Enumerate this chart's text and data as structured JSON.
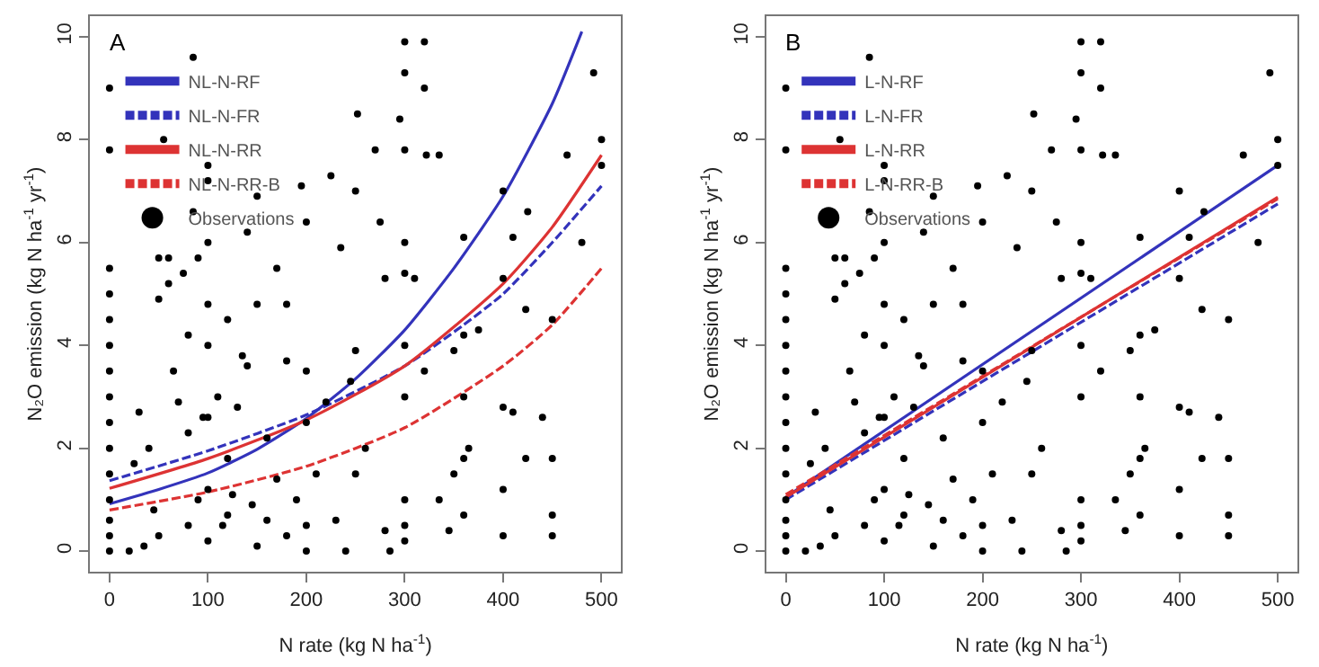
{
  "chart_data": [
    {
      "type": "line",
      "annotations": [
        "A"
      ],
      "xlabel": "N rate (kg N ha$^{-1}$)",
      "ylabel": "N₂O emission (kg N ha$^{-1}$ yr$^{-1}$)",
      "xlim": [
        -20,
        520
      ],
      "ylim": [
        -0.4,
        10.4
      ],
      "xticks": [
        0,
        100,
        200,
        300,
        400,
        500
      ],
      "yticks": [
        0,
        2,
        4,
        6,
        8,
        10
      ],
      "legend": "top left",
      "marker": "none",
      "series": [
        {
          "name": "NL-N-RF",
          "color": "#3333bb",
          "line_style": "solid",
          "x": [
            0,
            50,
            100,
            150,
            200,
            250,
            300,
            350,
            400,
            450,
            480
          ],
          "values": [
            0.92,
            1.2,
            1.52,
            1.98,
            2.58,
            3.35,
            4.3,
            5.5,
            6.9,
            8.7,
            10.1
          ]
        },
        {
          "name": "NL-N-FR",
          "color": "#3333bb",
          "line_style": "dashed",
          "x": [
            0,
            100,
            200,
            300,
            360,
            400,
            450,
            500
          ],
          "values": [
            1.37,
            1.95,
            2.65,
            3.6,
            4.4,
            5.0,
            6.0,
            7.1
          ]
        },
        {
          "name": "NL-N-RR",
          "color": "#dd3333",
          "line_style": "solid",
          "x": [
            0,
            100,
            200,
            300,
            400,
            450,
            500
          ],
          "values": [
            1.22,
            1.8,
            2.55,
            3.6,
            5.2,
            6.3,
            7.7
          ]
        },
        {
          "name": "NL-N-RR-B",
          "color": "#dd3333",
          "line_style": "dashed",
          "x": [
            0,
            100,
            200,
            300,
            400,
            450,
            500
          ],
          "values": [
            0.8,
            1.15,
            1.65,
            2.4,
            3.6,
            4.4,
            5.5
          ]
        },
        {
          "name": "Observations",
          "type": "scatter",
          "color": "#000000",
          "marker": "circle",
          "x": [
            0,
            0,
            0,
            0,
            0,
            0,
            0,
            0,
            0,
            0,
            0,
            0,
            0,
            0,
            0,
            20,
            25,
            30,
            35,
            40,
            45,
            50,
            50,
            50,
            55,
            60,
            60,
            65,
            70,
            75,
            80,
            80,
            80,
            85,
            85,
            90,
            90,
            95,
            100,
            100,
            100,
            100,
            100,
            100,
            100,
            100,
            110,
            115,
            120,
            120,
            120,
            125,
            130,
            135,
            140,
            140,
            145,
            150,
            150,
            150,
            160,
            160,
            170,
            170,
            180,
            180,
            180,
            190,
            195,
            200,
            200,
            200,
            200,
            200,
            210,
            220,
            225,
            230,
            235,
            240,
            245,
            250,
            250,
            250,
            252,
            260,
            270,
            275,
            280,
            280,
            285,
            295,
            300,
            300,
            300,
            300,
            300,
            300,
            300,
            300,
            300,
            300,
            310,
            320,
            320,
            320,
            322,
            335,
            335,
            345,
            350,
            350,
            360,
            360,
            360,
            360,
            360,
            365,
            375,
            400,
            400,
            400,
            400,
            400,
            410,
            410,
            423,
            425,
            423,
            440,
            450,
            450,
            450,
            450,
            465,
            480,
            492,
            500,
            500
          ],
          "values": [
            0,
            0.3,
            0.6,
            1,
            1.5,
            2,
            2.5,
            3,
            3.5,
            4,
            4.5,
            5,
            5.5,
            7.8,
            9.0,
            0,
            1.7,
            2.7,
            0.1,
            2.0,
            0.8,
            5.7,
            4.9,
            0.3,
            8.0,
            5.7,
            5.2,
            3.5,
            2.9,
            5.4,
            0.5,
            2.3,
            4.2,
            6.6,
            9.6,
            1.0,
            5.7,
            2.6,
            0.2,
            1.2,
            2.6,
            4.0,
            4.8,
            6.0,
            7.2,
            7.5,
            3.0,
            0.5,
            0.7,
            1.8,
            4.5,
            1.1,
            2.8,
            3.8,
            6.2,
            3.6,
            0.9,
            4.8,
            6.9,
            0.1,
            0.6,
            2.2,
            5.5,
            1.4,
            3.7,
            4.8,
            0.3,
            1.0,
            7.1,
            6.4,
            3.5,
            2.5,
            0.5,
            0.0,
            1.5,
            2.9,
            7.3,
            0.6,
            5.9,
            0.0,
            3.3,
            3.9,
            7.0,
            1.5,
            8.5,
            2.0,
            7.8,
            6.4,
            5.3,
            0.4,
            0.0,
            8.4,
            9.9,
            9.3,
            7.8,
            6.0,
            5.4,
            4.0,
            3.0,
            1.0,
            0.5,
            0.2,
            5.3,
            9.9,
            9.0,
            3.5,
            7.7,
            7.7,
            1.0,
            0.4,
            3.9,
            1.5,
            6.1,
            4.2,
            3.0,
            1.8,
            0.7,
            2.0,
            4.3,
            7.0,
            5.3,
            2.8,
            1.2,
            0.3,
            6.1,
            2.7,
            4.7,
            6.6,
            1.8,
            2.6,
            4.5,
            1.8,
            0.7,
            0.3,
            7.7,
            6.0,
            9.3,
            8.0,
            7.5
          ]
        }
      ]
    },
    {
      "type": "line",
      "annotations": [
        "B"
      ],
      "xlabel": "N rate (kg N ha$^{-1}$)",
      "ylabel": "N₂O emission (kg N ha$^{-1}$ yr$^{-1}$)",
      "xlim": [
        -20,
        520
      ],
      "ylim": [
        -0.4,
        10.4
      ],
      "xticks": [
        0,
        100,
        200,
        300,
        400,
        500
      ],
      "yticks": [
        0,
        2,
        4,
        6,
        8,
        10
      ],
      "legend": "top left",
      "marker": "none",
      "series": [
        {
          "name": "L-N-RF",
          "color": "#3333bb",
          "line_style": "solid",
          "x": [
            0,
            500
          ],
          "values": [
            1.05,
            7.5
          ]
        },
        {
          "name": "L-N-FR",
          "color": "#3333bb",
          "line_style": "dashed",
          "x": [
            0,
            500
          ],
          "values": [
            1.0,
            6.75
          ]
        },
        {
          "name": "L-N-RR",
          "color": "#dd3333",
          "line_style": "solid",
          "x": [
            0,
            500
          ],
          "values": [
            1.05,
            6.88
          ]
        },
        {
          "name": "L-N-RR-B",
          "color": "#dd3333",
          "line_style": "dashed",
          "x": [
            0,
            500
          ],
          "values": [
            1.1,
            6.85
          ]
        },
        {
          "name": "Observations",
          "type": "scatter",
          "color": "#000000",
          "marker": "circle",
          "x": [
            0,
            0,
            0,
            0,
            0,
            0,
            0,
            0,
            0,
            0,
            0,
            0,
            0,
            0,
            0,
            20,
            25,
            30,
            35,
            40,
            45,
            50,
            50,
            50,
            55,
            60,
            60,
            65,
            70,
            75,
            80,
            80,
            80,
            85,
            85,
            90,
            90,
            95,
            100,
            100,
            100,
            100,
            100,
            100,
            100,
            100,
            110,
            115,
            120,
            120,
            120,
            125,
            130,
            135,
            140,
            140,
            145,
            150,
            150,
            150,
            160,
            160,
            170,
            170,
            180,
            180,
            180,
            190,
            195,
            200,
            200,
            200,
            200,
            200,
            210,
            220,
            225,
            230,
            235,
            240,
            245,
            250,
            250,
            250,
            252,
            260,
            270,
            275,
            280,
            280,
            285,
            295,
            300,
            300,
            300,
            300,
            300,
            300,
            300,
            300,
            300,
            300,
            310,
            320,
            320,
            320,
            322,
            335,
            335,
            345,
            350,
            350,
            360,
            360,
            360,
            360,
            360,
            365,
            375,
            400,
            400,
            400,
            400,
            400,
            410,
            410,
            423,
            425,
            423,
            440,
            450,
            450,
            450,
            450,
            465,
            480,
            492,
            500,
            500
          ],
          "values": [
            0,
            0.3,
            0.6,
            1,
            1.5,
            2,
            2.5,
            3,
            3.5,
            4,
            4.5,
            5,
            5.5,
            7.8,
            9.0,
            0,
            1.7,
            2.7,
            0.1,
            2.0,
            0.8,
            5.7,
            4.9,
            0.3,
            8.0,
            5.7,
            5.2,
            3.5,
            2.9,
            5.4,
            0.5,
            2.3,
            4.2,
            6.6,
            9.6,
            1.0,
            5.7,
            2.6,
            0.2,
            1.2,
            2.6,
            4.0,
            4.8,
            6.0,
            7.2,
            7.5,
            3.0,
            0.5,
            0.7,
            1.8,
            4.5,
            1.1,
            2.8,
            3.8,
            6.2,
            3.6,
            0.9,
            4.8,
            6.9,
            0.1,
            0.6,
            2.2,
            5.5,
            1.4,
            3.7,
            4.8,
            0.3,
            1.0,
            7.1,
            6.4,
            3.5,
            2.5,
            0.5,
            0.0,
            1.5,
            2.9,
            7.3,
            0.6,
            5.9,
            0.0,
            3.3,
            3.9,
            7.0,
            1.5,
            8.5,
            2.0,
            7.8,
            6.4,
            5.3,
            0.4,
            0.0,
            8.4,
            9.9,
            9.3,
            7.8,
            6.0,
            5.4,
            4.0,
            3.0,
            1.0,
            0.5,
            0.2,
            5.3,
            9.9,
            9.0,
            3.5,
            7.7,
            7.7,
            1.0,
            0.4,
            3.9,
            1.5,
            6.1,
            4.2,
            3.0,
            1.8,
            0.7,
            2.0,
            4.3,
            7.0,
            5.3,
            2.8,
            1.2,
            0.3,
            6.1,
            2.7,
            4.7,
            6.6,
            1.8,
            2.6,
            4.5,
            1.8,
            0.7,
            0.3,
            7.7,
            6.0,
            9.3,
            8.0,
            7.5
          ]
        }
      ]
    }
  ]
}
